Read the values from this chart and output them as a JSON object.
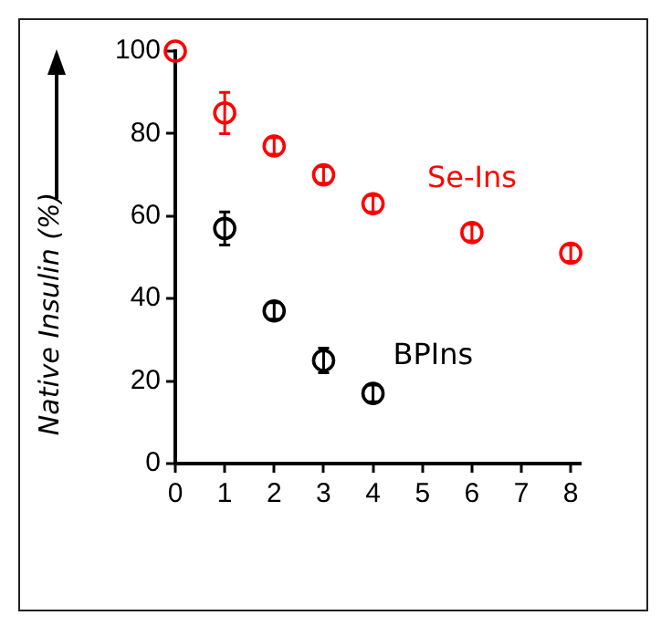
{
  "chart_data": {
    "type": "scatter",
    "ylabel": "Native Insulin (%)",
    "xlim": [
      0,
      8.2
    ],
    "xticks": [
      0,
      1,
      2,
      3,
      4,
      5,
      6,
      7,
      8
    ],
    "ylim": [
      0,
      100
    ],
    "yticks": [
      0,
      20,
      40,
      60,
      80,
      100
    ],
    "grid": false,
    "legend": false,
    "marker": "circle",
    "series": [
      {
        "name": "Se-Ins",
        "color": "#ff0000",
        "x": [
          0,
          1,
          2,
          3,
          4,
          6,
          8
        ],
        "values": [
          100,
          85,
          77,
          70,
          63,
          56,
          51
        ],
        "errors": [
          null,
          5,
          2,
          2,
          2,
          2,
          2
        ]
      },
      {
        "name": "BPIns",
        "color": "#000000",
        "x": [
          1,
          2,
          3,
          4
        ],
        "values": [
          57,
          37,
          25,
          17
        ],
        "errors": [
          4,
          2,
          3,
          2
        ]
      }
    ]
  }
}
